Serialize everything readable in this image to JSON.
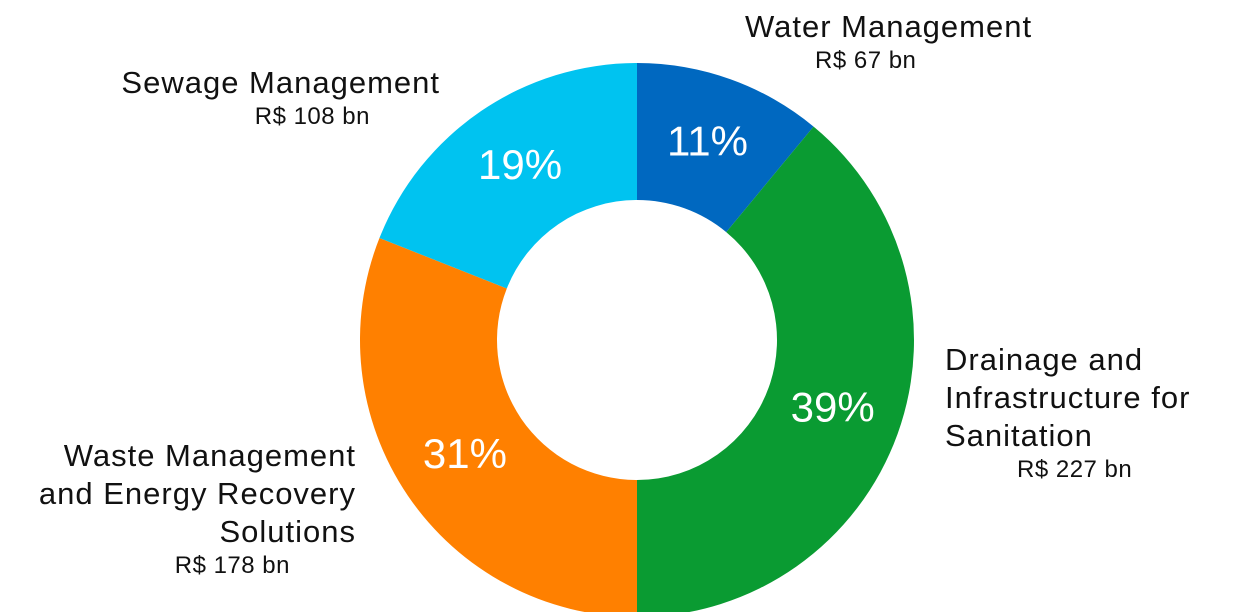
{
  "chart_data": {
    "type": "donut",
    "categories": [
      "Water Management",
      "Drainage and Infrastructure for Sanitation",
      "Waste Management and Energy Recovery Solutions",
      "Sewage Management"
    ],
    "values": [
      11,
      39,
      31,
      19
    ],
    "value_labels": [
      "11%",
      "39%",
      "31%",
      "19%"
    ],
    "amounts": [
      67,
      227,
      178,
      108
    ],
    "amount_labels": [
      "R$ 67 bn",
      "R$ 227 bn",
      "R$ 178 bn",
      "R$ 108 bn"
    ],
    "colors": [
      "#0068c0",
      "#0a9b32",
      "#ff8000",
      "#00c3f0"
    ]
  }
}
